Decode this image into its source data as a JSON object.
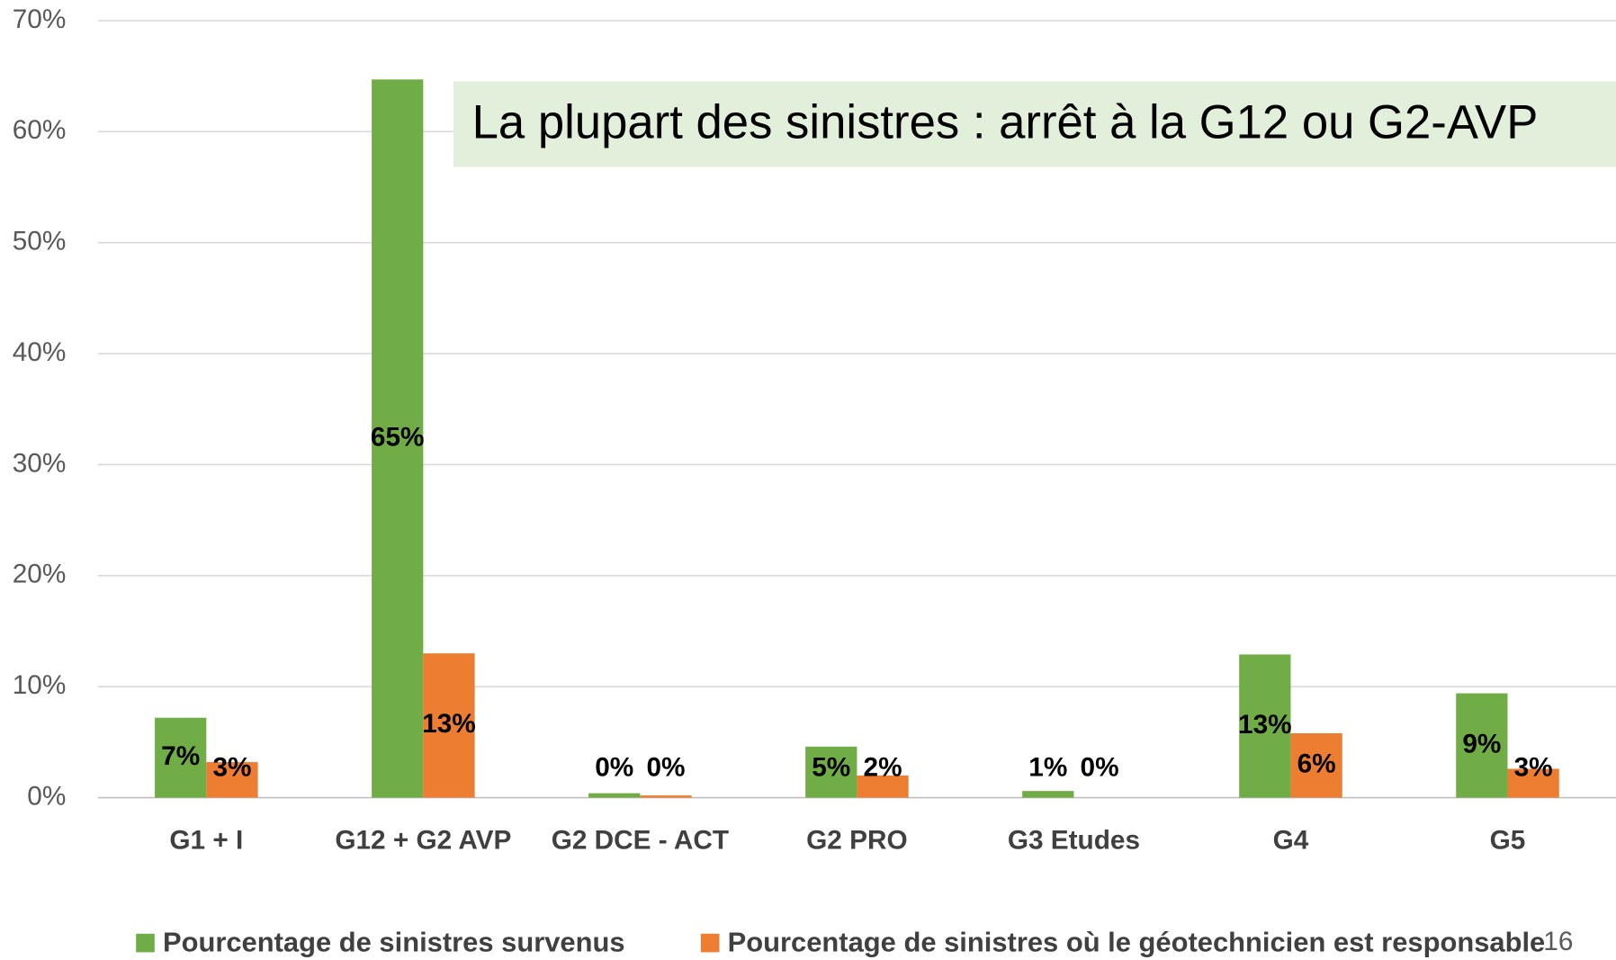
{
  "chart_data": {
    "type": "bar",
    "annotation": "La plupart des sinistres : arrêt à la G12 ou G2-AVP",
    "page_number": "16",
    "categories": [
      "G1 + I",
      "G12 + G2 AVP",
      "G2 DCE - ACT",
      "G2 PRO",
      "G3 Etudes",
      "G4",
      "G5"
    ],
    "series": [
      {
        "name": "Pourcentage de sinistres survenus",
        "color": "#70ad47",
        "values": [
          7.2,
          64.7,
          0.4,
          4.6,
          0.6,
          12.9,
          9.4
        ],
        "value_labels": [
          "7%",
          "65%",
          "0%",
          "5%",
          "1%",
          "13%",
          "9%"
        ]
      },
      {
        "name": "Pourcentage de sinistres où le géotechnicien est responsable",
        "color": "#ed7d31",
        "values": [
          3.2,
          13.0,
          0.2,
          2.0,
          0.0,
          5.8,
          2.6
        ],
        "value_labels": [
          "3%",
          "13%",
          "0%",
          "2%",
          "0%",
          "6%",
          "3%"
        ]
      }
    ],
    "ylim": [
      0,
      70
    ],
    "yticks": [
      {
        "value": 0,
        "label": "0%"
      },
      {
        "value": 10,
        "label": "10%"
      },
      {
        "value": 20,
        "label": "20%"
      },
      {
        "value": 30,
        "label": "30%"
      },
      {
        "value": 40,
        "label": "40%"
      },
      {
        "value": 50,
        "label": "50%"
      },
      {
        "value": 60,
        "label": "60%"
      },
      {
        "value": 70,
        "label": "70%"
      }
    ],
    "grid": true,
    "legend": "bottom"
  }
}
